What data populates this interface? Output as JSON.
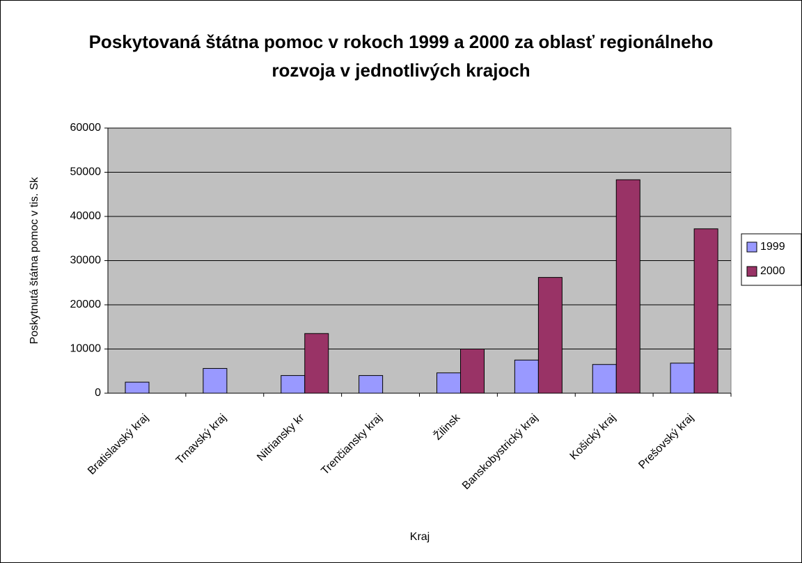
{
  "chart_data": {
    "type": "bar",
    "title": "Poskytovaná štátna pomoc v rokoch 1999 a 2000 za oblasť regionálneho rozvoja v jednotlivých krajoch",
    "x_label": "Kraj",
    "y_label": "Poskytnutá štátna pomoc v tis. Sk",
    "categories": [
      "Bratislavský kraj",
      "Trnavský kraj",
      "Nitriansky kr",
      "Trenčiansky kraj",
      "Žilinsk",
      "Banskobystrický kraj",
      "Košický kraj",
      "Prešovský kraj"
    ],
    "series": [
      {
        "name": "1999",
        "color": "#9999ff",
        "values": [
          2500,
          5600,
          4000,
          4000,
          4600,
          7500,
          6500,
          6800
        ]
      },
      {
        "name": "2000",
        "color": "#993366",
        "values": [
          null,
          null,
          13500,
          null,
          10000,
          26200,
          48300,
          37200
        ]
      }
    ],
    "ylim": [
      0,
      60000
    ],
    "yticks": [
      0,
      10000,
      20000,
      30000,
      40000,
      50000,
      60000
    ],
    "grid": true,
    "legend": "right",
    "plot_background": "#c0c0c0"
  }
}
